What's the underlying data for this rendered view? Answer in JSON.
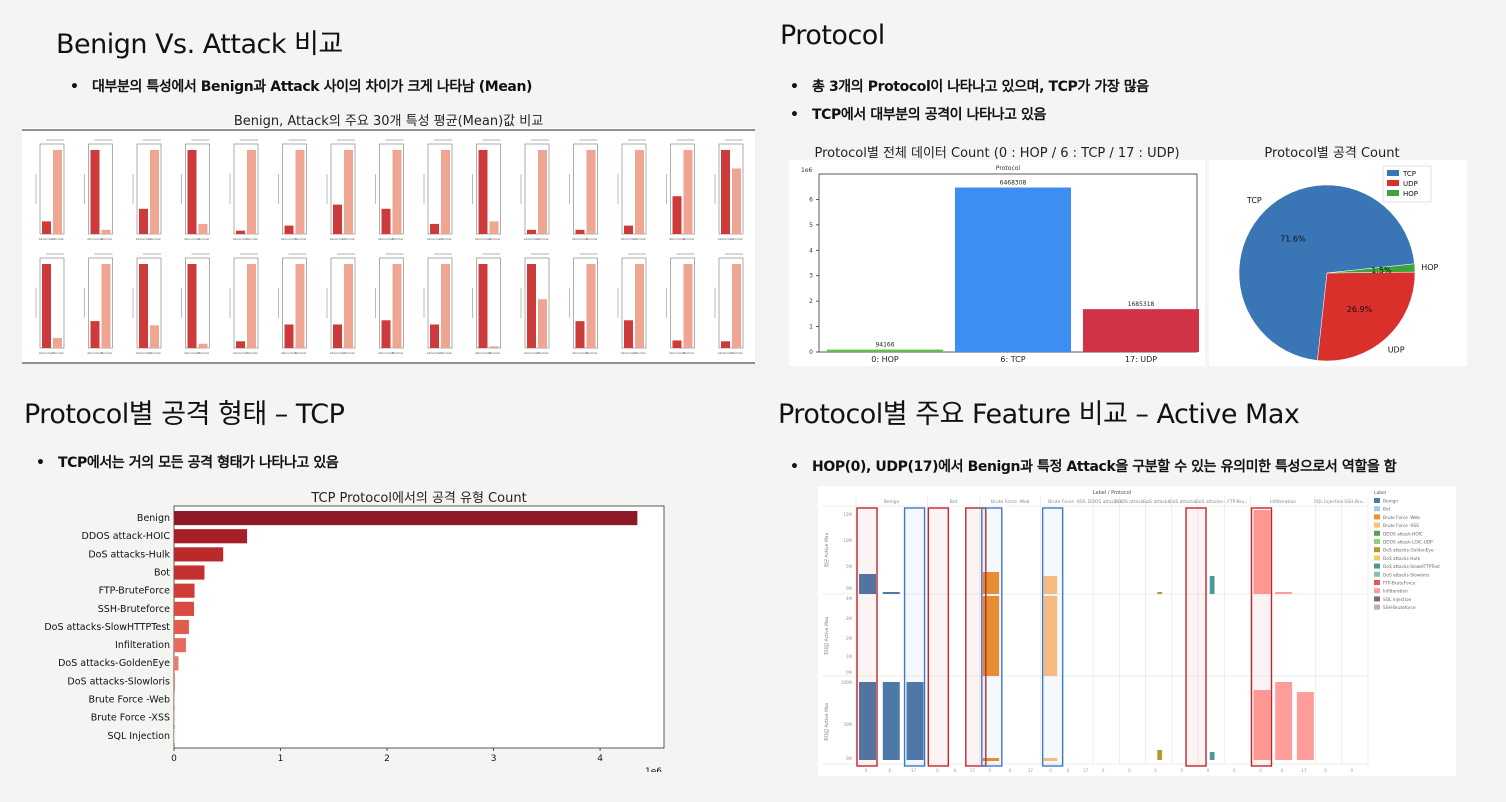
{
  "panels": {
    "p1": {
      "title": "Benign Vs. Attack 비교",
      "bullet": "대부분의 특성에서 Benign과 Attack 사이의 차이가 크게 나타남 (Mean)"
    },
    "p2": {
      "title": "Protocol",
      "bullets": [
        "총 3개의 Protocol이 나타나고 있으며, TCP가 가장 많음",
        "TCP에서 대부분의 공격이 나타나고 있음"
      ]
    },
    "p3": {
      "title": "Protocol별 공격 형태 – TCP",
      "bullet": "TCP에서는 거의 모든 공격 형태가 나타나고 있음"
    },
    "p4": {
      "title": "Protocol별 주요 Feature 비교 – Active Max",
      "bullet": "HOP(0), UDP(17)에서 Benign과 특정 Attack을 구분할 수 있는 유의미한 특성으로서 역할을 함"
    }
  },
  "chart_data": [
    {
      "id": "feature-means",
      "type": "bar",
      "title": "Benign, Attack의 주요 30개 특성 평균(Mean)값 비교",
      "categories": [
        "Abnormal",
        "Normal"
      ],
      "colors": [
        "#cd3a3a",
        "#eea591"
      ],
      "subplots": [
        [
          0.15,
          1.0
        ],
        [
          1.0,
          0.05
        ],
        [
          0.3,
          1.0
        ],
        [
          1.0,
          0.12
        ],
        [
          0.04,
          1.0
        ],
        [
          0.1,
          1.0
        ],
        [
          0.35,
          1.0
        ],
        [
          0.3,
          1.0
        ],
        [
          0.12,
          1.0
        ],
        [
          1.0,
          0.15
        ],
        [
          0.05,
          1.0
        ],
        [
          0.05,
          1.0
        ],
        [
          0.1,
          1.0
        ],
        [
          0.45,
          1.0
        ],
        [
          1.0,
          0.78
        ],
        [
          1.0,
          0.12
        ],
        [
          0.32,
          1.0
        ],
        [
          1.0,
          0.27
        ],
        [
          1.0,
          0.05
        ],
        [
          0.08,
          1.0
        ],
        [
          0.28,
          1.0
        ],
        [
          0.28,
          1.0
        ],
        [
          0.33,
          1.0
        ],
        [
          0.28,
          1.0
        ],
        [
          1.0,
          0.02
        ],
        [
          1.0,
          0.58
        ],
        [
          0.32,
          1.0
        ],
        [
          0.33,
          1.0
        ],
        [
          0.09,
          1.0
        ],
        [
          0.08,
          1.0
        ]
      ]
    },
    {
      "id": "protocol-count",
      "type": "bar",
      "title": "Protocol별 전체 데이터 Count (0 : HOP / 6 : TCP / 17 : UDP)",
      "inner_title": "Protocol",
      "multiplier": "1e6",
      "categories": [
        "0: HOP",
        "6: TCP",
        "17: UDP"
      ],
      "values": [
        94166,
        6468308,
        1685318
      ],
      "labels": [
        "94166",
        "6468308",
        "1685318"
      ],
      "colors": [
        "#5fbe4c",
        "#3c8ef3",
        "#d03246"
      ],
      "ylim": [
        0,
        7000000
      ],
      "yticks": [
        "0",
        "1",
        "2",
        "3",
        "4",
        "5",
        "6"
      ]
    },
    {
      "id": "protocol-attack-pie",
      "type": "pie",
      "title": "Protocol별 공격 Count",
      "slices": [
        {
          "label": "TCP",
          "value": 71.6,
          "pct": "71.6%",
          "color": "#3a75b5"
        },
        {
          "label": "UDP",
          "value": 26.9,
          "pct": "26.9%",
          "color": "#d9302c"
        },
        {
          "label": "HOP",
          "value": 1.5,
          "pct": "1.5%",
          "color": "#3fa23b"
        }
      ],
      "legend": [
        "TCP",
        "UDP",
        "HOP"
      ],
      "legend_position": "top-right"
    },
    {
      "id": "tcp-attack-types",
      "type": "bar",
      "orientation": "horizontal",
      "title": "TCP Protocol에서의 공격 유형 Count",
      "multiplier": "1e6",
      "categories": [
        "Benign",
        "DDOS attack-HOIC",
        "DoS attacks-Hulk",
        "Bot",
        "FTP-BruteForce",
        "SSH-Bruteforce",
        "DoS attacks-SlowHTTPTest",
        "Infilteration",
        "DoS attacks-GoldenEye",
        "DoS attacks-Slowloris",
        "Brute Force -Web",
        "Brute Force -XSS",
        "SQL Injection"
      ],
      "values": [
        4350000,
        686000,
        462000,
        286000,
        193000,
        188000,
        140000,
        112000,
        42000,
        10000,
        600,
        230,
        90
      ],
      "colors": [
        "#8e1a25",
        "#a61f26",
        "#b82a2b",
        "#c23130",
        "#d13c36",
        "#d94b40",
        "#e05c4d",
        "#e56c5c",
        "#e97c6c",
        "#ec8a7b",
        "#ef9788",
        "#f1a396",
        "#f3aea1"
      ],
      "xlim": [
        0,
        4600000
      ],
      "xticks": [
        "0",
        "1",
        "2",
        "3",
        "4"
      ]
    },
    {
      "id": "active-max",
      "type": "bar",
      "title": "Label / Protocol",
      "ylabels": [
        "평균 Active Max",
        "최대값 Active Max",
        "최대값 Active Max"
      ],
      "groups": [
        "Benign",
        "Bot",
        "Brute Force -Web",
        "Brute Force -XSS",
        "DDOS attack-H..",
        "DDOS attack-L..",
        "DoS attacks-..",
        "DoS attacks-..",
        "DoS attacks-..",
        "FTP-Bru..",
        "Infilteration",
        "SQL Injection",
        "SSH-Bru.."
      ],
      "legend_title": "Label",
      "legend": [
        {
          "name": "Benign",
          "color": "#4e79a7"
        },
        {
          "name": "Bot",
          "color": "#a0cbe8"
        },
        {
          "name": "Brute Force -Web",
          "color": "#f28e2b"
        },
        {
          "name": "Brute Force -XSS",
          "color": "#ffbe7d"
        },
        {
          "name": "DDOS attack-HOIC",
          "color": "#59a14f"
        },
        {
          "name": "DDOS attack-LOIC-UDP",
          "color": "#8cd17d"
        },
        {
          "name": "DoS attacks-GoldenEye",
          "color": "#b6992d"
        },
        {
          "name": "DoS attacks-Hulk",
          "color": "#f1ce63"
        },
        {
          "name": "DoS attacks-SlowHTTPTest",
          "color": "#499894"
        },
        {
          "name": "DoS attacks-Slowloris",
          "color": "#86bcb6"
        },
        {
          "name": "FTP-BruteForce",
          "color": "#e15759"
        },
        {
          "name": "Infilteration",
          "color": "#ff9d9a"
        },
        {
          "name": "SQL Injection",
          "color": "#79706e"
        },
        {
          "name": "SSH-Bruteforce",
          "color": "#bab0ac"
        }
      ]
    }
  ]
}
